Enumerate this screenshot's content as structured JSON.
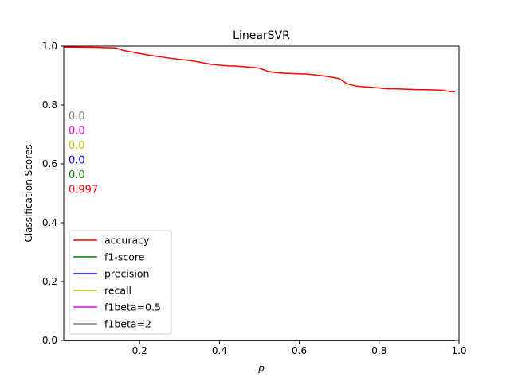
{
  "chart_data": {
    "type": "line",
    "title": "LinearSVR",
    "xlabel": "p",
    "ylabel": "Classification Scores",
    "xlim": [
      0.01,
      1.0
    ],
    "ylim": [
      0.0,
      1.0
    ],
    "xticks": [
      "0.2",
      "0.4",
      "0.6",
      "0.8",
      "1.0"
    ],
    "xtick_values": [
      0.2,
      0.4,
      0.6,
      0.8,
      1.0
    ],
    "yticks": [
      "0.0",
      "0.2",
      "0.4",
      "0.6",
      "0.8",
      "1.0"
    ],
    "ytick_values": [
      0.0,
      0.2,
      0.4,
      0.6,
      0.8,
      1.0
    ],
    "grid": false,
    "legend_position": "lower-left",
    "annotations": [
      {
        "text": "0.0",
        "color": "#808080"
      },
      {
        "text": "0.0",
        "color": "#ff00ff"
      },
      {
        "text": "0.0",
        "color": "#bfbf00"
      },
      {
        "text": "0.0",
        "color": "#0000ff"
      },
      {
        "text": "0.0",
        "color": "#008000"
      },
      {
        "text": "0.997",
        "color": "#ff0000"
      }
    ],
    "series": [
      {
        "name": "accuracy",
        "color": "#ff0000",
        "x": [
          0.01,
          0.08,
          0.14,
          0.16,
          0.18,
          0.2,
          0.22,
          0.24,
          0.26,
          0.28,
          0.3,
          0.32,
          0.34,
          0.36,
          0.38,
          0.4,
          0.42,
          0.44,
          0.46,
          0.48,
          0.5,
          0.52,
          0.54,
          0.56,
          0.58,
          0.6,
          0.62,
          0.64,
          0.66,
          0.68,
          0.7,
          0.72,
          0.74,
          0.76,
          0.78,
          0.8,
          0.82,
          0.84,
          0.86,
          0.88,
          0.9,
          0.92,
          0.94,
          0.96,
          0.98,
          0.99
        ],
        "values": [
          0.997,
          0.996,
          0.994,
          0.985,
          0.98,
          0.975,
          0.97,
          0.966,
          0.962,
          0.958,
          0.955,
          0.952,
          0.948,
          0.943,
          0.938,
          0.935,
          0.933,
          0.932,
          0.93,
          0.928,
          0.925,
          0.915,
          0.91,
          0.908,
          0.907,
          0.906,
          0.905,
          0.902,
          0.899,
          0.895,
          0.89,
          0.872,
          0.865,
          0.862,
          0.86,
          0.858,
          0.855,
          0.855,
          0.854,
          0.853,
          0.852,
          0.852,
          0.851,
          0.85,
          0.845,
          0.845
        ]
      },
      {
        "name": "f1-score",
        "color": "#008000",
        "x": [
          0.01,
          0.99
        ],
        "values": [
          0.0,
          0.0
        ]
      },
      {
        "name": "precision",
        "color": "#0000ff",
        "x": [
          0.01,
          0.99
        ],
        "values": [
          0.0,
          0.0
        ]
      },
      {
        "name": "recall",
        "color": "#bfbf00",
        "x": [
          0.01,
          0.99
        ],
        "values": [
          0.0,
          0.0
        ]
      },
      {
        "name": "f1beta=0.5",
        "color": "#ff00ff",
        "x": [
          0.01,
          0.99
        ],
        "values": [
          0.0,
          0.0
        ]
      },
      {
        "name": "f1beta=2",
        "color": "#808080",
        "x": [
          0.01,
          0.99
        ],
        "values": [
          0.0,
          0.0
        ]
      }
    ]
  }
}
